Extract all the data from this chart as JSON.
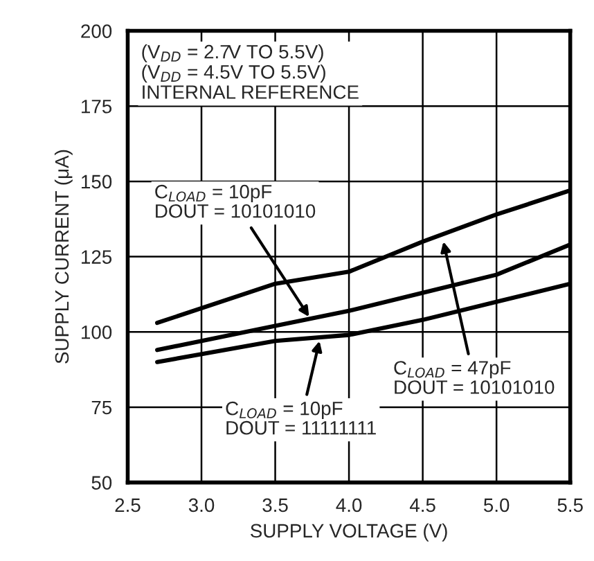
{
  "chart_data": {
    "type": "line",
    "xlabel": "SUPPLY VOLTAGE (V)",
    "ylabel": "SUPPLY CURRENT (μA)",
    "x": [
      2.7,
      3.5,
      4.0,
      4.5,
      5.0,
      5.5
    ],
    "series": [
      {
        "color": "#000000",
        "values": [
          103,
          116,
          120,
          130,
          139,
          147
        ]
      },
      {
        "color": "#000000",
        "values": [
          94,
          102,
          107,
          113,
          119,
          129
        ]
      },
      {
        "color": "#000000",
        "values": [
          90,
          97,
          99,
          104,
          110,
          116
        ]
      }
    ],
    "xlim": [
      2.5,
      5.5
    ],
    "ylim": [
      50,
      200
    ],
    "xticks": [
      2.5,
      {
        "value": 3,
        "label": "3.0"
      },
      3.5,
      {
        "value": 4,
        "label": "4.0"
      },
      4.5,
      {
        "value": 5,
        "label": "5.0"
      },
      5.5
    ],
    "yticks": [
      50,
      75,
      100,
      125,
      150,
      175,
      200
    ],
    "grid": true,
    "legend": false,
    "marker": "none",
    "line_style": "solid",
    "annotations": [
      "(V$_{DD}$ = 2.7V TO 5.5V)\n(V$_{DD}$ = 4.5V TO 5.5V)\nINTERNAL REFERENCE",
      {
        "text": "C$_{LOAD}$ = 10pF\nDOUT = 10101010",
        "x": 3.73,
        "y": 105
      },
      {
        "text": "C$_{LOAD}$ = 47pF\nDOUT = 10101010",
        "x": 4.64,
        "y": 130
      },
      {
        "text": "C$_{LOAD}$ = 10pF\nDOUT = 11111111",
        "x": 3.8,
        "y": 97
      }
    ]
  }
}
